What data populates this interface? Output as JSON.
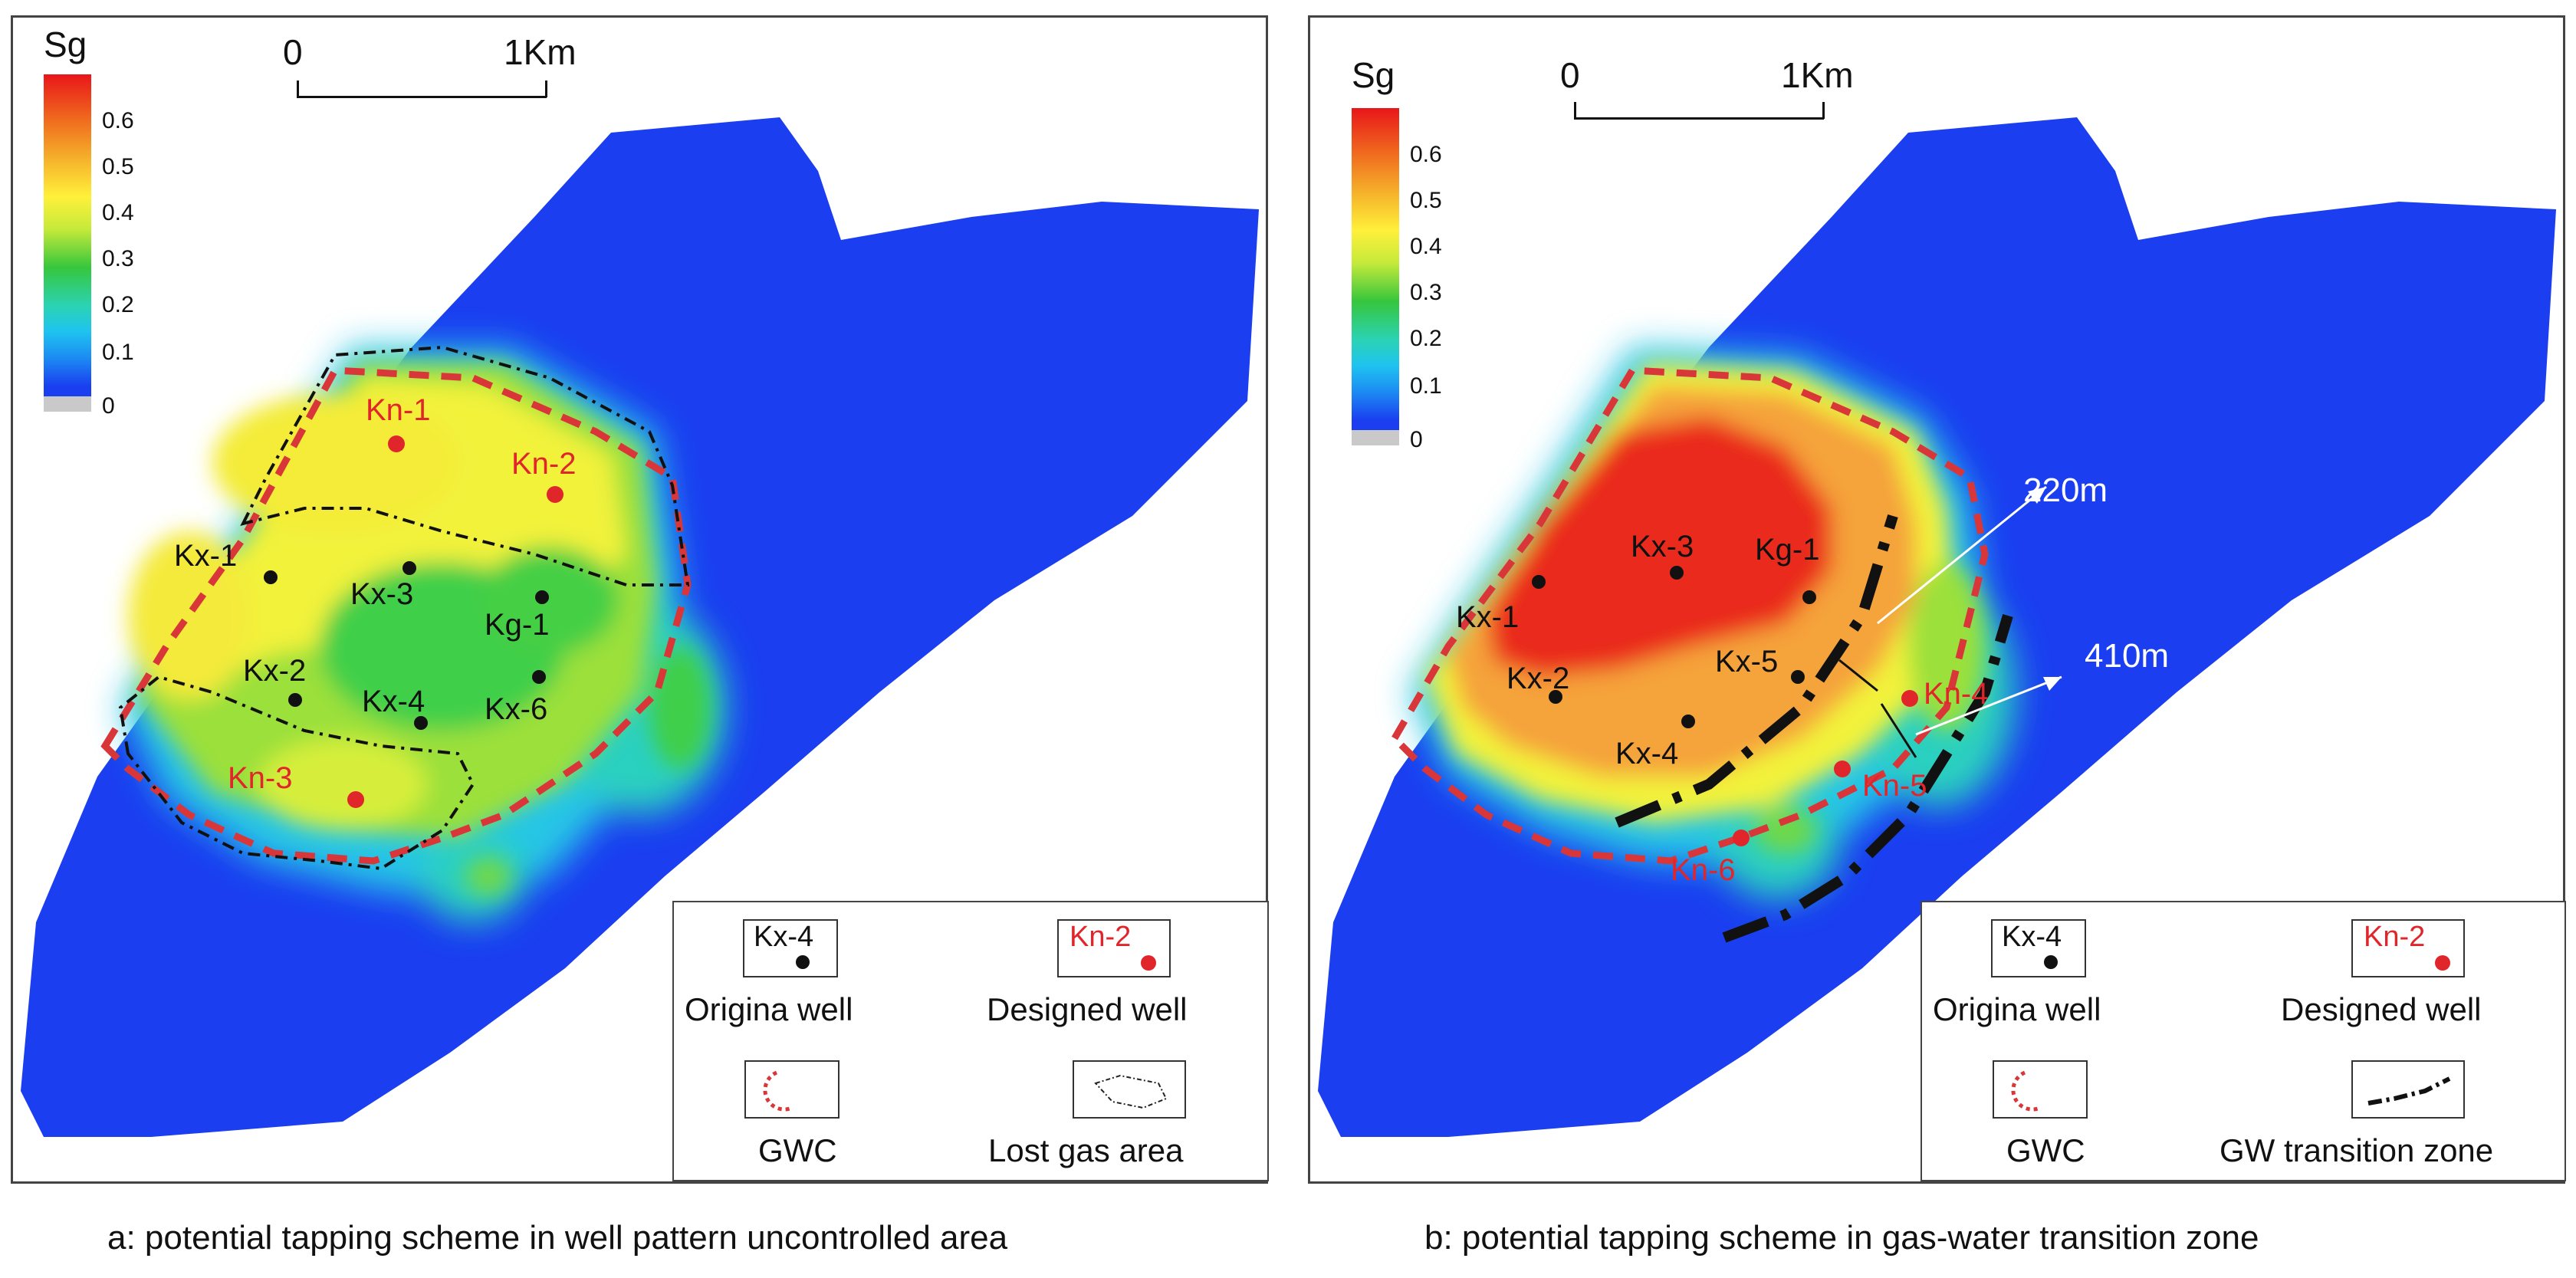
{
  "colorbar": {
    "title": "Sg",
    "ticks": [
      "0.6",
      "0.5",
      "0.4",
      "0.3",
      "0.2",
      "0.1",
      "0"
    ],
    "range": [
      0,
      0.7
    ]
  },
  "scale": {
    "start": "0",
    "end": "1Km"
  },
  "panel_a": {
    "caption": "a: potential tapping scheme in well pattern  uncontrolled area",
    "wells_original": [
      "Kx-1",
      "Kx-2",
      "Kx-3",
      "Kx-4",
      "Kg-1",
      "Kx-6"
    ],
    "wells_designed": [
      "Kn-1",
      "Kn-2",
      "Kn-3"
    ],
    "legend": {
      "sample_original": "Kx-4",
      "original": "Origina well",
      "sample_designed": "Kn-2",
      "designed": "Designed well",
      "gwc": "GWC",
      "lost": "Lost gas  area"
    }
  },
  "panel_b": {
    "caption": "b: potential tapping scheme in gas-water transition zone",
    "wells_original": [
      "Kx-1",
      "Kx-2",
      "Kx-3",
      "Kg-1",
      "Kx-5",
      "Kx-4"
    ],
    "wells_designed": [
      "Kn-4",
      "Kn-5",
      "Kn-6"
    ],
    "annotations": [
      "220m",
      "410m"
    ],
    "legend": {
      "sample_original": "Kx-4",
      "original": "Origina well",
      "sample_designed": "Kn-2",
      "designed": "Designed well",
      "gwc": "GWC",
      "gw": "GW  transition zone"
    }
  },
  "colors": {
    "field_blue": "#1a3ef0",
    "well_red": "#e0262b",
    "gwc_red": "#d9363a"
  }
}
